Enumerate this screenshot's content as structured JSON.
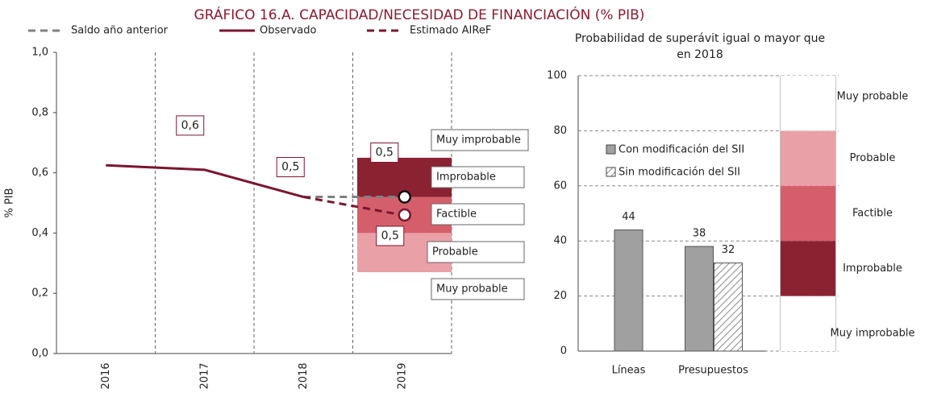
{
  "title": "GRÁFICO 16.A.      CAPACIDAD/NECESIDAD DE FINANCIACIÓN (% PIB)",
  "chart_data": [
    {
      "type": "line",
      "ylabel": "% PIB",
      "categories": [
        "2016",
        "2017",
        "2018",
        "2019"
      ],
      "ylim": [
        0,
        1
      ],
      "yticks": [
        {
          "value": 0,
          "label": "0,0"
        },
        {
          "value": 0.2,
          "label": "0,2"
        },
        {
          "value": 0.4,
          "label": "0,4"
        },
        {
          "value": 0.6,
          "label": "0,6"
        },
        {
          "value": 0.8,
          "label": "0,8"
        },
        {
          "value": 1,
          "label": "1,0"
        }
      ],
      "series": [
        {
          "name": "Saldo año anterior",
          "color": "#808080",
          "dash": true,
          "values": [
            null,
            null,
            0.52,
            0.52
          ],
          "value_labels": [
            null,
            null,
            null,
            "0,5"
          ]
        },
        {
          "name": "Observado",
          "color": "#7b1530",
          "dash": false,
          "values": [
            0.625,
            0.61,
            0.52,
            null
          ],
          "value_labels": [
            null,
            "0,6",
            "0,5",
            null
          ]
        },
        {
          "name": "Estimado AIReF",
          "color": "#7b1530",
          "dash": true,
          "values": [
            null,
            null,
            0.52,
            0.46
          ],
          "value_labels": [
            null,
            null,
            null,
            "0,5"
          ]
        }
      ],
      "bands": [
        {
          "name": "Improbable",
          "low": 0.52,
          "high": 0.65,
          "color": "#8b2232"
        },
        {
          "name": "Factible",
          "low": 0.4,
          "high": 0.52,
          "color": "#d45f6b"
        },
        {
          "name": "Probable",
          "low": 0.27,
          "high": 0.4,
          "color": "#e9a0a7"
        }
      ],
      "band_labels": [
        "Muy improbable",
        "Improbable",
        "Factible",
        "Probable",
        "Muy probable"
      ]
    },
    {
      "type": "bar",
      "title": "Probabilidad de superávit igual o mayor que en 2018",
      "categories": [
        "Líneas",
        "Presupuestos"
      ],
      "ylim": [
        0,
        100
      ],
      "yticks": [
        0,
        20,
        40,
        60,
        80,
        100
      ],
      "series": [
        {
          "name": "Con modificación del SII",
          "color": "#a0a0a0",
          "values": [
            44,
            38
          ]
        },
        {
          "name": "Sin modificación del SII",
          "color": "hatch",
          "values": [
            null,
            32
          ]
        }
      ],
      "scale_bands": [
        {
          "name": "Muy improbable",
          "low": 0,
          "high": 20,
          "color": "#ffffff"
        },
        {
          "name": "Improbable",
          "low": 20,
          "high": 40,
          "color": "#8b2232"
        },
        {
          "name": "Factible",
          "low": 40,
          "high": 60,
          "color": "#d45f6b"
        },
        {
          "name": "Probable",
          "low": 60,
          "high": 80,
          "color": "#e9a0a7"
        },
        {
          "name": "Muy probable",
          "low": 80,
          "high": 100,
          "color": "#ffffff"
        }
      ]
    }
  ]
}
